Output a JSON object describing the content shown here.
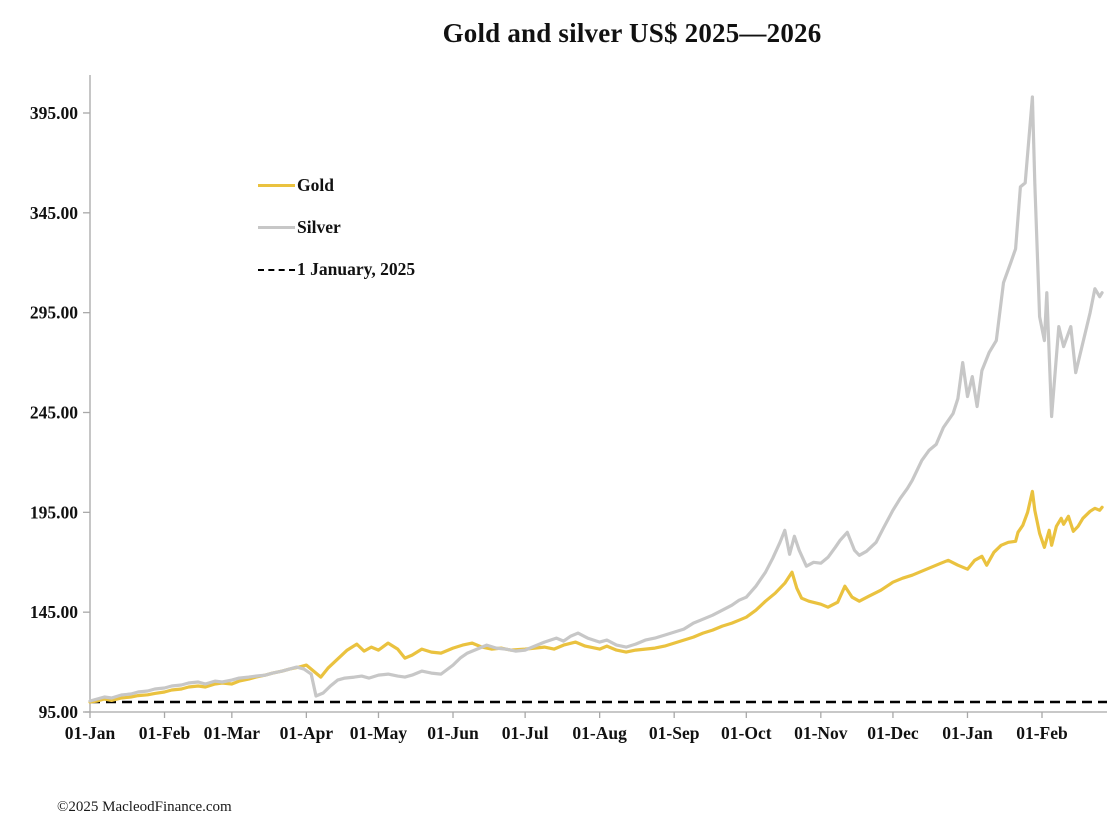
{
  "window": {
    "title": "Gold and silver  US$ 2025—2026"
  },
  "footer": {
    "copyright": "©2025 MacleodFinance.com"
  },
  "legend": {
    "items": [
      {
        "label": "Gold",
        "color": "#EAC23F",
        "style": "solid"
      },
      {
        "label": "Silver",
        "color": "#C7C7C7",
        "style": "solid"
      },
      {
        "label": "1 January, 2025",
        "color": "#000000",
        "style": "dashed"
      }
    ]
  },
  "chart_data": {
    "type": "line",
    "title": "Gold and silver  US$ 2025—2026",
    "xlabel": "",
    "ylabel": "",
    "x_unit": "days since 2025-01-01",
    "x_range_days": [
      0,
      421
    ],
    "ylim": [
      95,
      414
    ],
    "grid": false,
    "legend_position": "upper-left-inside",
    "axis_color": "#a8a8a8",
    "x_ticks": {
      "labels": [
        "01-Jan",
        "01-Feb",
        "01-Mar",
        "01-Apr",
        "01-May",
        "01-Jun",
        "01-Jul",
        "01-Aug",
        "01-Sep",
        "01-Oct",
        "01-Nov",
        "01-Dec",
        "01-Jan",
        "01-Feb"
      ],
      "days": [
        0,
        31,
        59,
        90,
        120,
        151,
        181,
        212,
        243,
        273,
        304,
        334,
        365,
        396
      ]
    },
    "y_ticks": {
      "labels": [
        "95.00",
        "145.00",
        "195.00",
        "245.00",
        "295.00",
        "345.00",
        "395.00"
      ],
      "values": [
        95,
        145,
        195,
        245,
        295,
        345,
        395
      ]
    },
    "reference_line": {
      "label": "1 January, 2025",
      "value": 100,
      "style": "dashed",
      "color": "#000000"
    },
    "series": [
      {
        "name": "Gold",
        "color": "#EAC23F",
        "points": [
          [
            0,
            100
          ],
          [
            3,
            100.5
          ],
          [
            6,
            101.5
          ],
          [
            9,
            100.8
          ],
          [
            13,
            102
          ],
          [
            17,
            102.5
          ],
          [
            20,
            103.2
          ],
          [
            24,
            103.6
          ],
          [
            27,
            104.3
          ],
          [
            31,
            105
          ],
          [
            34,
            106
          ],
          [
            38,
            106.5
          ],
          [
            41,
            107.5
          ],
          [
            45,
            108
          ],
          [
            48,
            107.5
          ],
          [
            52,
            109
          ],
          [
            55,
            109.5
          ],
          [
            59,
            109
          ],
          [
            62,
            110.5
          ],
          [
            66,
            111.5
          ],
          [
            69,
            112.5
          ],
          [
            73,
            113.5
          ],
          [
            76,
            114.5
          ],
          [
            80,
            115.5
          ],
          [
            83,
            116.5
          ],
          [
            87,
            117.5
          ],
          [
            90,
            118.5
          ],
          [
            93,
            115.5
          ],
          [
            96,
            112.5
          ],
          [
            99,
            117
          ],
          [
            103,
            121.5
          ],
          [
            107,
            126
          ],
          [
            111,
            129
          ],
          [
            114,
            125.5
          ],
          [
            117,
            127.5
          ],
          [
            120,
            126
          ],
          [
            124,
            129.5
          ],
          [
            128,
            126.5
          ],
          [
            131,
            122
          ],
          [
            134,
            123.5
          ],
          [
            138,
            126.5
          ],
          [
            142,
            125
          ],
          [
            146,
            124.5
          ],
          [
            151,
            127
          ],
          [
            155,
            128.5
          ],
          [
            159,
            129.5
          ],
          [
            163,
            127.5
          ],
          [
            167,
            126.5
          ],
          [
            171,
            127
          ],
          [
            175,
            126
          ],
          [
            181,
            126.5
          ],
          [
            185,
            127
          ],
          [
            189,
            127.5
          ],
          [
            193,
            126.5
          ],
          [
            197,
            128.5
          ],
          [
            202,
            130
          ],
          [
            206,
            128
          ],
          [
            212,
            126.5
          ],
          [
            215,
            128
          ],
          [
            219,
            126
          ],
          [
            223,
            125
          ],
          [
            227,
            126
          ],
          [
            231,
            126.5
          ],
          [
            235,
            127
          ],
          [
            239,
            128
          ],
          [
            243,
            129.5
          ],
          [
            247,
            131
          ],
          [
            251,
            132.5
          ],
          [
            255,
            134.5
          ],
          [
            259,
            136
          ],
          [
            263,
            138
          ],
          [
            267,
            139.5
          ],
          [
            270,
            141
          ],
          [
            273,
            142.5
          ],
          [
            277,
            146
          ],
          [
            281,
            150.5
          ],
          [
            285,
            154.5
          ],
          [
            289,
            159.5
          ],
          [
            292,
            165
          ],
          [
            294,
            157
          ],
          [
            296,
            152
          ],
          [
            299,
            150.5
          ],
          [
            304,
            149
          ],
          [
            307,
            147.5
          ],
          [
            311,
            150
          ],
          [
            314,
            158
          ],
          [
            317,
            152.5
          ],
          [
            320,
            150.5
          ],
          [
            324,
            153
          ],
          [
            329,
            156
          ],
          [
            334,
            160
          ],
          [
            338,
            162
          ],
          [
            342,
            163.5
          ],
          [
            346,
            165.5
          ],
          [
            350,
            167.5
          ],
          [
            354,
            169.5
          ],
          [
            357,
            171
          ],
          [
            361,
            168.5
          ],
          [
            365,
            166.5
          ],
          [
            368,
            171
          ],
          [
            371,
            173
          ],
          [
            373,
            168.5
          ],
          [
            376,
            175
          ],
          [
            379,
            178.5
          ],
          [
            382,
            180
          ],
          [
            385,
            180.5
          ],
          [
            386,
            185
          ],
          [
            388,
            188.5
          ],
          [
            390,
            195
          ],
          [
            392,
            205.5
          ],
          [
            393,
            196
          ],
          [
            395,
            184.5
          ],
          [
            397,
            177.5
          ],
          [
            399,
            186
          ],
          [
            400,
            178.5
          ],
          [
            402,
            188
          ],
          [
            404,
            192
          ],
          [
            405,
            189
          ],
          [
            407,
            193
          ],
          [
            409,
            185.5
          ],
          [
            411,
            188
          ],
          [
            413,
            192
          ],
          [
            416,
            195.5
          ],
          [
            418,
            197
          ],
          [
            420,
            196
          ],
          [
            421,
            197.5
          ]
        ]
      },
      {
        "name": "Silver",
        "color": "#C7C7C7",
        "points": [
          [
            0,
            100.5
          ],
          [
            3,
            101.5
          ],
          [
            6,
            102.5
          ],
          [
            9,
            102
          ],
          [
            13,
            103.5
          ],
          [
            17,
            104
          ],
          [
            20,
            105
          ],
          [
            24,
            105.5
          ],
          [
            27,
            106.5
          ],
          [
            31,
            107
          ],
          [
            34,
            108
          ],
          [
            38,
            108.5
          ],
          [
            41,
            109.5
          ],
          [
            45,
            110
          ],
          [
            48,
            109
          ],
          [
            52,
            110.5
          ],
          [
            55,
            110
          ],
          [
            59,
            111
          ],
          [
            62,
            112
          ],
          [
            66,
            112.5
          ],
          [
            69,
            113
          ],
          [
            73,
            113.5
          ],
          [
            76,
            114.5
          ],
          [
            80,
            115.5
          ],
          [
            83,
            116.5
          ],
          [
            86,
            117.5
          ],
          [
            89,
            116.5
          ],
          [
            92,
            114
          ],
          [
            94,
            103
          ],
          [
            97,
            104.5
          ],
          [
            100,
            108
          ],
          [
            103,
            111
          ],
          [
            106,
            112
          ],
          [
            110,
            112.5
          ],
          [
            113,
            113
          ],
          [
            116,
            112
          ],
          [
            120,
            113.5
          ],
          [
            124,
            114
          ],
          [
            128,
            113
          ],
          [
            131,
            112.5
          ],
          [
            134,
            113.5
          ],
          [
            138,
            115.5
          ],
          [
            142,
            114.5
          ],
          [
            146,
            114
          ],
          [
            151,
            118.5
          ],
          [
            154,
            122
          ],
          [
            157,
            124.5
          ],
          [
            161,
            126.5
          ],
          [
            165,
            128.5
          ],
          [
            169,
            127
          ],
          [
            173,
            126.5
          ],
          [
            177,
            125.5
          ],
          [
            181,
            126
          ],
          [
            185,
            128
          ],
          [
            189,
            130
          ],
          [
            194,
            132
          ],
          [
            197,
            130.5
          ],
          [
            200,
            133
          ],
          [
            203,
            134.5
          ],
          [
            207,
            132
          ],
          [
            212,
            130
          ],
          [
            215,
            131
          ],
          [
            219,
            128.5
          ],
          [
            223,
            127.5
          ],
          [
            227,
            129
          ],
          [
            231,
            131
          ],
          [
            235,
            132
          ],
          [
            239,
            133.5
          ],
          [
            243,
            135
          ],
          [
            247,
            136.5
          ],
          [
            251,
            139.5
          ],
          [
            255,
            141.5
          ],
          [
            259,
            143.5
          ],
          [
            263,
            146
          ],
          [
            267,
            148.5
          ],
          [
            270,
            151
          ],
          [
            273,
            152.5
          ],
          [
            277,
            158
          ],
          [
            281,
            165
          ],
          [
            284,
            172
          ],
          [
            287,
            180
          ],
          [
            289,
            186
          ],
          [
            291,
            174
          ],
          [
            293,
            183
          ],
          [
            295,
            176
          ],
          [
            298,
            168
          ],
          [
            301,
            170
          ],
          [
            304,
            169.5
          ],
          [
            307,
            172.5
          ],
          [
            310,
            177.5
          ],
          [
            312,
            181
          ],
          [
            315,
            185
          ],
          [
            318,
            176
          ],
          [
            320,
            173.5
          ],
          [
            323,
            175.5
          ],
          [
            327,
            180
          ],
          [
            330,
            187
          ],
          [
            334,
            196
          ],
          [
            337,
            202
          ],
          [
            340,
            207
          ],
          [
            342,
            211
          ],
          [
            346,
            221
          ],
          [
            349,
            226
          ],
          [
            352,
            229
          ],
          [
            355,
            237.5
          ],
          [
            359,
            244.5
          ],
          [
            361,
            252
          ],
          [
            363,
            270
          ],
          [
            365,
            253
          ],
          [
            367,
            263
          ],
          [
            369,
            248
          ],
          [
            371,
            266
          ],
          [
            374,
            275
          ],
          [
            377,
            281
          ],
          [
            380,
            310
          ],
          [
            383,
            320
          ],
          [
            385,
            327
          ],
          [
            387,
            358
          ],
          [
            389,
            360
          ],
          [
            392,
            403
          ],
          [
            393,
            360
          ],
          [
            395,
            293
          ],
          [
            397,
            281
          ],
          [
            398,
            305
          ],
          [
            400,
            243
          ],
          [
            403,
            288
          ],
          [
            405,
            278
          ],
          [
            408,
            288
          ],
          [
            410,
            265
          ],
          [
            413,
            280
          ],
          [
            416,
            295
          ],
          [
            418,
            307
          ],
          [
            420,
            303
          ],
          [
            421,
            305
          ]
        ]
      }
    ]
  }
}
